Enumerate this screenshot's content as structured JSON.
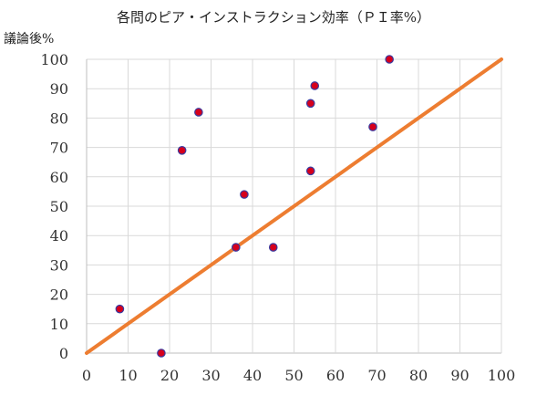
{
  "chart_data": {
    "type": "scatter",
    "title": "各問のピア・インストラクション効率（ＰＩ率%）",
    "xlabel": "",
    "ylabel": "議論後%",
    "xlim": [
      0,
      100
    ],
    "ylim": [
      0,
      100
    ],
    "x_ticks": [
      0,
      10,
      20,
      30,
      40,
      50,
      60,
      70,
      80,
      90,
      100
    ],
    "y_ticks": [
      0,
      10,
      20,
      30,
      40,
      50,
      60,
      70,
      80,
      90,
      100
    ],
    "grid": true,
    "series": [
      {
        "points": [
          {
            "x": 8,
            "y": 15
          },
          {
            "x": 18,
            "y": 0
          },
          {
            "x": 23,
            "y": 69
          },
          {
            "x": 27,
            "y": 82
          },
          {
            "x": 36,
            "y": 36
          },
          {
            "x": 38,
            "y": 54
          },
          {
            "x": 45,
            "y": 36
          },
          {
            "x": 54,
            "y": 62
          },
          {
            "x": 54,
            "y": 85
          },
          {
            "x": 55,
            "y": 91
          },
          {
            "x": 69,
            "y": 77
          },
          {
            "x": 73,
            "y": 100
          }
        ]
      }
    ],
    "reference_line": {
      "from": [
        0,
        0
      ],
      "to": [
        100,
        100
      ]
    },
    "colors": {
      "point_fill": "#d6001c",
      "point_stroke": "#3a3aa0",
      "line": "#ed7d31"
    }
  }
}
